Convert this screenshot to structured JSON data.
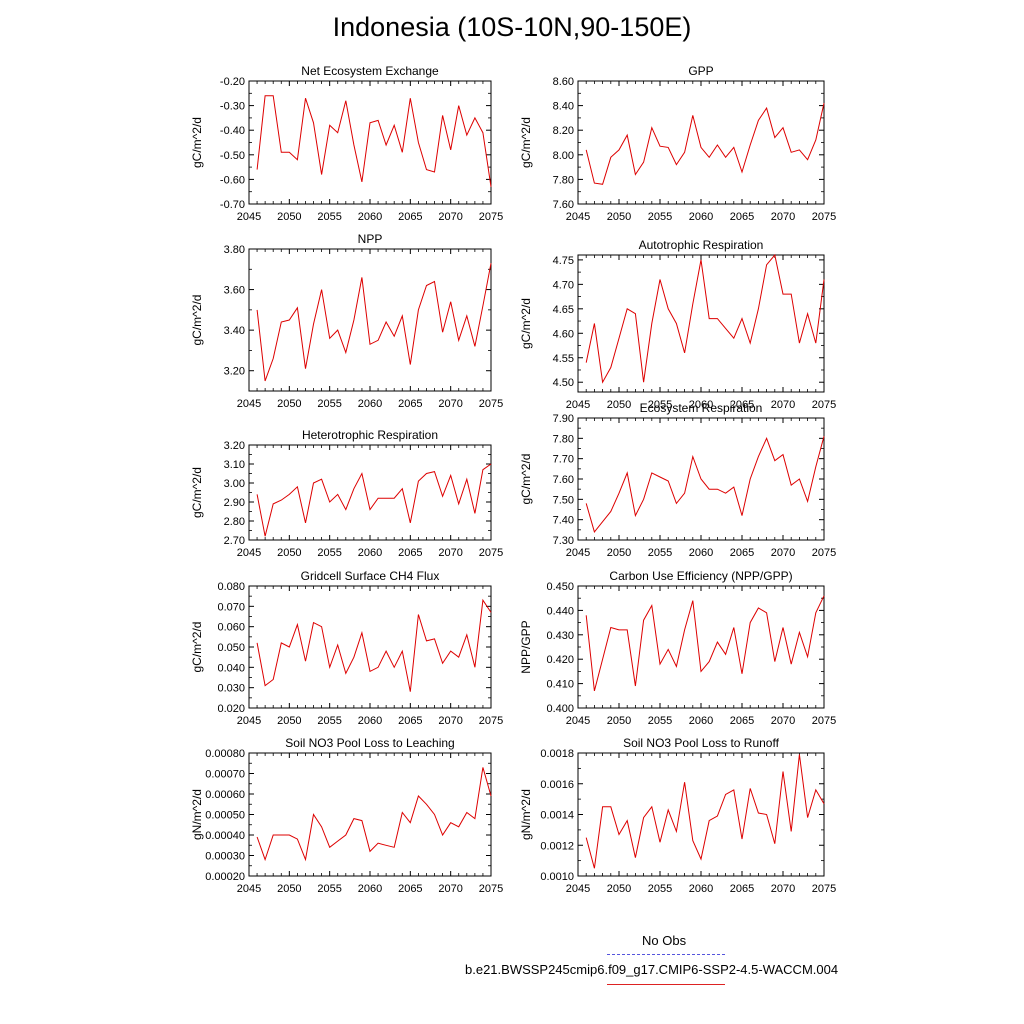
{
  "page_title": "Indonesia (10S-10N,90-150E)",
  "legend": {
    "items": [
      {
        "label": "No Obs",
        "color": "#5555dd",
        "style": "dashed"
      },
      {
        "label": "b.e21.BWSSP245cmip6.f09_g17.CMIP6-SSP2-4.5-WACCM.004",
        "color": "#dd2222",
        "style": "solid"
      }
    ]
  },
  "chart_data": [
    {
      "type": "line",
      "title": "Net Ecosystem Exchange",
      "ylabel": "gC/m^2/d",
      "xlim": [
        2045,
        2075
      ],
      "ylim": [
        -0.7,
        -0.2
      ],
      "xticks": [
        2045,
        2050,
        2055,
        2060,
        2065,
        2070,
        2075
      ],
      "xtick_labels": [
        "2045",
        "2050",
        "2055",
        "2060",
        "2065",
        "2070",
        "2075"
      ],
      "yticks": [
        -0.7,
        -0.6,
        -0.5,
        -0.4,
        -0.3,
        -0.2
      ],
      "ytick_labels": [
        "-0.70",
        "-0.60",
        "-0.50",
        "-0.40",
        "-0.30",
        "-0.20"
      ],
      "series": [
        {
          "color": "#dd0000",
          "x": [
            2046,
            2047,
            2048,
            2049,
            2050,
            2051,
            2052,
            2053,
            2054,
            2055,
            2056,
            2057,
            2058,
            2059,
            2060,
            2061,
            2062,
            2063,
            2064,
            2065,
            2066,
            2067,
            2068,
            2069,
            2070,
            2071,
            2072,
            2073,
            2074,
            2075
          ],
          "y": [
            -0.56,
            -0.26,
            -0.26,
            -0.49,
            -0.49,
            -0.52,
            -0.27,
            -0.37,
            -0.58,
            -0.38,
            -0.41,
            -0.28,
            -0.46,
            -0.61,
            -0.37,
            -0.36,
            -0.46,
            -0.38,
            -0.49,
            -0.27,
            -0.45,
            -0.56,
            -0.57,
            -0.34,
            -0.48,
            -0.3,
            -0.42,
            -0.35,
            -0.41,
            -0.63
          ]
        }
      ]
    },
    {
      "type": "line",
      "title": "GPP",
      "ylabel": "gC/m^2/d",
      "xlim": [
        2045,
        2075
      ],
      "ylim": [
        7.6,
        8.6
      ],
      "xticks": [
        2045,
        2050,
        2055,
        2060,
        2065,
        2070,
        2075
      ],
      "xtick_labels": [
        "2045",
        "2050",
        "2055",
        "2060",
        "2065",
        "2070",
        "2075"
      ],
      "yticks": [
        7.6,
        7.8,
        8.0,
        8.2,
        8.4,
        8.6
      ],
      "ytick_labels": [
        "7.60",
        "7.80",
        "8.00",
        "8.20",
        "8.40",
        "8.60"
      ],
      "series": [
        {
          "color": "#dd0000",
          "x": [
            2046,
            2047,
            2048,
            2049,
            2050,
            2051,
            2052,
            2053,
            2054,
            2055,
            2056,
            2057,
            2058,
            2059,
            2060,
            2061,
            2062,
            2063,
            2064,
            2065,
            2066,
            2067,
            2068,
            2069,
            2070,
            2071,
            2072,
            2073,
            2074,
            2075
          ],
          "y": [
            8.04,
            7.77,
            7.76,
            7.98,
            8.04,
            8.16,
            7.84,
            7.94,
            8.22,
            8.07,
            8.06,
            7.92,
            8.02,
            8.32,
            8.06,
            7.98,
            8.08,
            7.98,
            8.06,
            7.86,
            8.08,
            8.28,
            8.38,
            8.14,
            8.22,
            8.02,
            8.04,
            7.96,
            8.12,
            8.42
          ]
        }
      ]
    },
    {
      "type": "line",
      "title": "NPP",
      "ylabel": "gC/m^2/d",
      "xlim": [
        2045,
        2075
      ],
      "ylim": [
        3.1,
        3.8
      ],
      "xticks": [
        2045,
        2050,
        2055,
        2060,
        2065,
        2070,
        2075
      ],
      "xtick_labels": [
        "2045",
        "2050",
        "2055",
        "2060",
        "2065",
        "2070",
        "2075"
      ],
      "yticks": [
        3.2,
        3.4,
        3.6,
        3.8
      ],
      "ytick_labels": [
        "3.20",
        "3.40",
        "3.60",
        "3.80"
      ],
      "series": [
        {
          "color": "#dd0000",
          "x": [
            2046,
            2047,
            2048,
            2049,
            2050,
            2051,
            2052,
            2053,
            2054,
            2055,
            2056,
            2057,
            2058,
            2059,
            2060,
            2061,
            2062,
            2063,
            2064,
            2065,
            2066,
            2067,
            2068,
            2069,
            2070,
            2071,
            2072,
            2073,
            2074,
            2075
          ],
          "y": [
            3.5,
            3.15,
            3.26,
            3.44,
            3.45,
            3.51,
            3.21,
            3.43,
            3.6,
            3.36,
            3.4,
            3.29,
            3.45,
            3.66,
            3.33,
            3.35,
            3.44,
            3.37,
            3.47,
            3.23,
            3.5,
            3.62,
            3.64,
            3.39,
            3.54,
            3.35,
            3.47,
            3.32,
            3.52,
            3.73
          ]
        }
      ]
    },
    {
      "type": "line",
      "title": "Autotrophic Respiration",
      "ylabel": "gC/m^2/d",
      "xlim": [
        2045,
        2075
      ],
      "ylim": [
        4.48,
        4.76
      ],
      "xticks": [
        2045,
        2050,
        2055,
        2060,
        2065,
        2070,
        2075
      ],
      "xtick_labels": [
        "2045",
        "2050",
        "2055",
        "2060",
        "2065",
        "2070",
        "2075"
      ],
      "yticks": [
        4.5,
        4.55,
        4.6,
        4.65,
        4.7,
        4.75
      ],
      "ytick_labels": [
        "4.50",
        "4.55",
        "4.60",
        "4.65",
        "4.70",
        "4.75"
      ],
      "series": [
        {
          "color": "#dd0000",
          "x": [
            2046,
            2047,
            2048,
            2049,
            2050,
            2051,
            2052,
            2053,
            2054,
            2055,
            2056,
            2057,
            2058,
            2059,
            2060,
            2061,
            2062,
            2063,
            2064,
            2065,
            2066,
            2067,
            2068,
            2069,
            2070,
            2071,
            2072,
            2073,
            2074,
            2075
          ],
          "y": [
            4.54,
            4.62,
            4.5,
            4.53,
            4.59,
            4.65,
            4.64,
            4.5,
            4.62,
            4.71,
            4.65,
            4.62,
            4.56,
            4.66,
            4.75,
            4.63,
            4.63,
            4.61,
            4.59,
            4.63,
            4.58,
            4.65,
            4.74,
            4.76,
            4.68,
            4.68,
            4.58,
            4.64,
            4.58,
            4.71
          ]
        }
      ]
    },
    {
      "type": "line",
      "title": "Heterotrophic Respiration",
      "ylabel": "gC/m^2/d",
      "xlim": [
        2045,
        2075
      ],
      "ylim": [
        2.7,
        3.2
      ],
      "xticks": [
        2045,
        2050,
        2055,
        2060,
        2065,
        2070,
        2075
      ],
      "xtick_labels": [
        "2045",
        "2050",
        "2055",
        "2060",
        "2065",
        "2070",
        "2075"
      ],
      "yticks": [
        2.7,
        2.8,
        2.9,
        3.0,
        3.1,
        3.2
      ],
      "ytick_labels": [
        "2.70",
        "2.80",
        "2.90",
        "3.00",
        "3.10",
        "3.20"
      ],
      "series": [
        {
          "color": "#dd0000",
          "x": [
            2046,
            2047,
            2048,
            2049,
            2050,
            2051,
            2052,
            2053,
            2054,
            2055,
            2056,
            2057,
            2058,
            2059,
            2060,
            2061,
            2062,
            2063,
            2064,
            2065,
            2066,
            2067,
            2068,
            2069,
            2070,
            2071,
            2072,
            2073,
            2074,
            2075
          ],
          "y": [
            2.94,
            2.72,
            2.89,
            2.91,
            2.94,
            2.98,
            2.79,
            3.0,
            3.02,
            2.9,
            2.94,
            2.86,
            2.97,
            3.05,
            2.86,
            2.92,
            2.92,
            2.92,
            2.97,
            2.79,
            3.01,
            3.05,
            3.06,
            2.93,
            3.04,
            2.89,
            3.02,
            2.84,
            3.07,
            3.1
          ]
        }
      ]
    },
    {
      "type": "line",
      "title": "Ecosystem Respiration",
      "ylabel": "gC/m^2/d",
      "xlim": [
        2045,
        2075
      ],
      "ylim": [
        7.3,
        7.9
      ],
      "xticks": [
        2045,
        2050,
        2055,
        2060,
        2065,
        2070,
        2075
      ],
      "xtick_labels": [
        "2045",
        "2050",
        "2055",
        "2060",
        "2065",
        "2070",
        "2075"
      ],
      "yticks": [
        7.3,
        7.4,
        7.5,
        7.6,
        7.7,
        7.8,
        7.9
      ],
      "ytick_labels": [
        "7.30",
        "7.40",
        "7.50",
        "7.60",
        "7.70",
        "7.80",
        "7.90"
      ],
      "series": [
        {
          "color": "#dd0000",
          "x": [
            2046,
            2047,
            2048,
            2049,
            2050,
            2051,
            2052,
            2053,
            2054,
            2055,
            2056,
            2057,
            2058,
            2059,
            2060,
            2061,
            2062,
            2063,
            2064,
            2065,
            2066,
            2067,
            2068,
            2069,
            2070,
            2071,
            2072,
            2073,
            2074,
            2075
          ],
          "y": [
            7.48,
            7.34,
            7.39,
            7.44,
            7.53,
            7.63,
            7.42,
            7.5,
            7.63,
            7.61,
            7.59,
            7.48,
            7.53,
            7.71,
            7.6,
            7.55,
            7.55,
            7.53,
            7.56,
            7.42,
            7.6,
            7.71,
            7.8,
            7.69,
            7.72,
            7.57,
            7.6,
            7.49,
            7.66,
            7.81
          ]
        }
      ]
    },
    {
      "type": "line",
      "title": "Gridcell Surface CH4 Flux",
      "ylabel": "gC/m^2/d",
      "xlim": [
        2045,
        2075
      ],
      "ylim": [
        0.02,
        0.08
      ],
      "xticks": [
        2045,
        2050,
        2055,
        2060,
        2065,
        2070,
        2075
      ],
      "xtick_labels": [
        "2045",
        "2050",
        "2055",
        "2060",
        "2065",
        "2070",
        "2075"
      ],
      "yticks": [
        0.02,
        0.03,
        0.04,
        0.05,
        0.06,
        0.07,
        0.08
      ],
      "ytick_labels": [
        "0.020",
        "0.030",
        "0.040",
        "0.050",
        "0.060",
        "0.070",
        "0.080"
      ],
      "series": [
        {
          "color": "#dd0000",
          "x": [
            2046,
            2047,
            2048,
            2049,
            2050,
            2051,
            2052,
            2053,
            2054,
            2055,
            2056,
            2057,
            2058,
            2059,
            2060,
            2061,
            2062,
            2063,
            2064,
            2065,
            2066,
            2067,
            2068,
            2069,
            2070,
            2071,
            2072,
            2073,
            2074,
            2075
          ],
          "y": [
            0.052,
            0.031,
            0.034,
            0.052,
            0.05,
            0.061,
            0.043,
            0.062,
            0.06,
            0.04,
            0.051,
            0.037,
            0.045,
            0.057,
            0.038,
            0.04,
            0.048,
            0.04,
            0.048,
            0.028,
            0.066,
            0.053,
            0.054,
            0.042,
            0.048,
            0.045,
            0.056,
            0.04,
            0.073,
            0.067
          ]
        }
      ]
    },
    {
      "type": "line",
      "title": "Carbon Use Efficiency (NPP/GPP)",
      "ylabel": "NPP/GPP",
      "xlim": [
        2045,
        2075
      ],
      "ylim": [
        0.4,
        0.45
      ],
      "xticks": [
        2045,
        2050,
        2055,
        2060,
        2065,
        2070,
        2075
      ],
      "xtick_labels": [
        "2045",
        "2050",
        "2055",
        "2060",
        "2065",
        "2070",
        "2075"
      ],
      "yticks": [
        0.4,
        0.41,
        0.42,
        0.43,
        0.44,
        0.45
      ],
      "ytick_labels": [
        "0.400",
        "0.410",
        "0.420",
        "0.430",
        "0.440",
        "0.450"
      ],
      "series": [
        {
          "color": "#dd0000",
          "x": [
            2046,
            2047,
            2048,
            2049,
            2050,
            2051,
            2052,
            2053,
            2054,
            2055,
            2056,
            2057,
            2058,
            2059,
            2060,
            2061,
            2062,
            2063,
            2064,
            2065,
            2066,
            2067,
            2068,
            2069,
            2070,
            2071,
            2072,
            2073,
            2074,
            2075
          ],
          "y": [
            0.438,
            0.407,
            0.42,
            0.433,
            0.432,
            0.432,
            0.409,
            0.436,
            0.442,
            0.418,
            0.424,
            0.417,
            0.432,
            0.444,
            0.415,
            0.419,
            0.427,
            0.422,
            0.433,
            0.414,
            0.435,
            0.441,
            0.439,
            0.419,
            0.433,
            0.418,
            0.431,
            0.421,
            0.439,
            0.446
          ]
        }
      ]
    },
    {
      "type": "line",
      "title": "Soil NO3 Pool Loss to Leaching",
      "ylabel": "gN/m^2/d",
      "xlim": [
        2045,
        2075
      ],
      "ylim": [
        0.0002,
        0.0008
      ],
      "xticks": [
        2045,
        2050,
        2055,
        2060,
        2065,
        2070,
        2075
      ],
      "xtick_labels": [
        "2045",
        "2050",
        "2055",
        "2060",
        "2065",
        "2070",
        "2075"
      ],
      "yticks": [
        0.0002,
        0.0003,
        0.0004,
        0.0005,
        0.0006,
        0.0007,
        0.0008
      ],
      "ytick_labels": [
        "0.00020",
        "0.00030",
        "0.00040",
        "0.00050",
        "0.00060",
        "0.00070",
        "0.00080"
      ],
      "series": [
        {
          "color": "#dd0000",
          "x": [
            2046,
            2047,
            2048,
            2049,
            2050,
            2051,
            2052,
            2053,
            2054,
            2055,
            2056,
            2057,
            2058,
            2059,
            2060,
            2061,
            2062,
            2063,
            2064,
            2065,
            2066,
            2067,
            2068,
            2069,
            2070,
            2071,
            2072,
            2073,
            2074,
            2075
          ],
          "y": [
            0.00039,
            0.00028,
            0.0004,
            0.0004,
            0.0004,
            0.00038,
            0.00028,
            0.0005,
            0.00044,
            0.00034,
            0.00037,
            0.0004,
            0.00048,
            0.00047,
            0.00032,
            0.00036,
            0.00035,
            0.00034,
            0.00051,
            0.00046,
            0.00059,
            0.00055,
            0.0005,
            0.0004,
            0.00046,
            0.00044,
            0.00051,
            0.00048,
            0.00073,
            0.00059
          ]
        }
      ]
    },
    {
      "type": "line",
      "title": "Soil NO3 Pool Loss to Runoff",
      "ylabel": "gN/m^2/d",
      "xlim": [
        2045,
        2075
      ],
      "ylim": [
        0.001,
        0.0018
      ],
      "xticks": [
        2045,
        2050,
        2055,
        2060,
        2065,
        2070,
        2075
      ],
      "xtick_labels": [
        "2045",
        "2050",
        "2055",
        "2060",
        "2065",
        "2070",
        "2075"
      ],
      "yticks": [
        0.001,
        0.0012,
        0.0014,
        0.0016,
        0.0018
      ],
      "ytick_labels": [
        "0.0010",
        "0.0012",
        "0.0014",
        "0.0016",
        "0.0018"
      ],
      "series": [
        {
          "color": "#dd0000",
          "x": [
            2046,
            2047,
            2048,
            2049,
            2050,
            2051,
            2052,
            2053,
            2054,
            2055,
            2056,
            2057,
            2058,
            2059,
            2060,
            2061,
            2062,
            2063,
            2064,
            2065,
            2066,
            2067,
            2068,
            2069,
            2070,
            2071,
            2072,
            2073,
            2074,
            2075
          ],
          "y": [
            0.00125,
            0.00105,
            0.00145,
            0.00145,
            0.00127,
            0.00136,
            0.00112,
            0.00138,
            0.00145,
            0.00122,
            0.00143,
            0.00129,
            0.00161,
            0.00123,
            0.00111,
            0.00136,
            0.00139,
            0.00153,
            0.00156,
            0.00124,
            0.00157,
            0.00141,
            0.0014,
            0.00121,
            0.00168,
            0.00129,
            0.00179,
            0.00138,
            0.00156,
            0.00147
          ]
        }
      ]
    }
  ]
}
